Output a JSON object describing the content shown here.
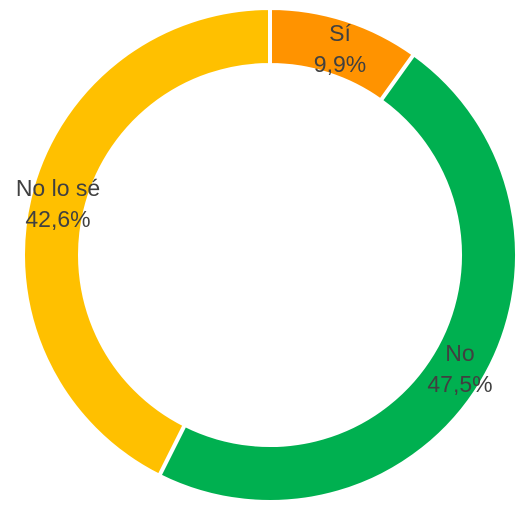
{
  "chart_data": {
    "type": "donut",
    "categories": [
      "Sí",
      "No",
      "No lo sé"
    ],
    "values": [
      9.9,
      47.5,
      42.6
    ],
    "value_labels": [
      "9,9%",
      "47,5%",
      "42,6%"
    ],
    "colors": [
      "#FF9300",
      "#00B050",
      "#FFC000"
    ]
  }
}
